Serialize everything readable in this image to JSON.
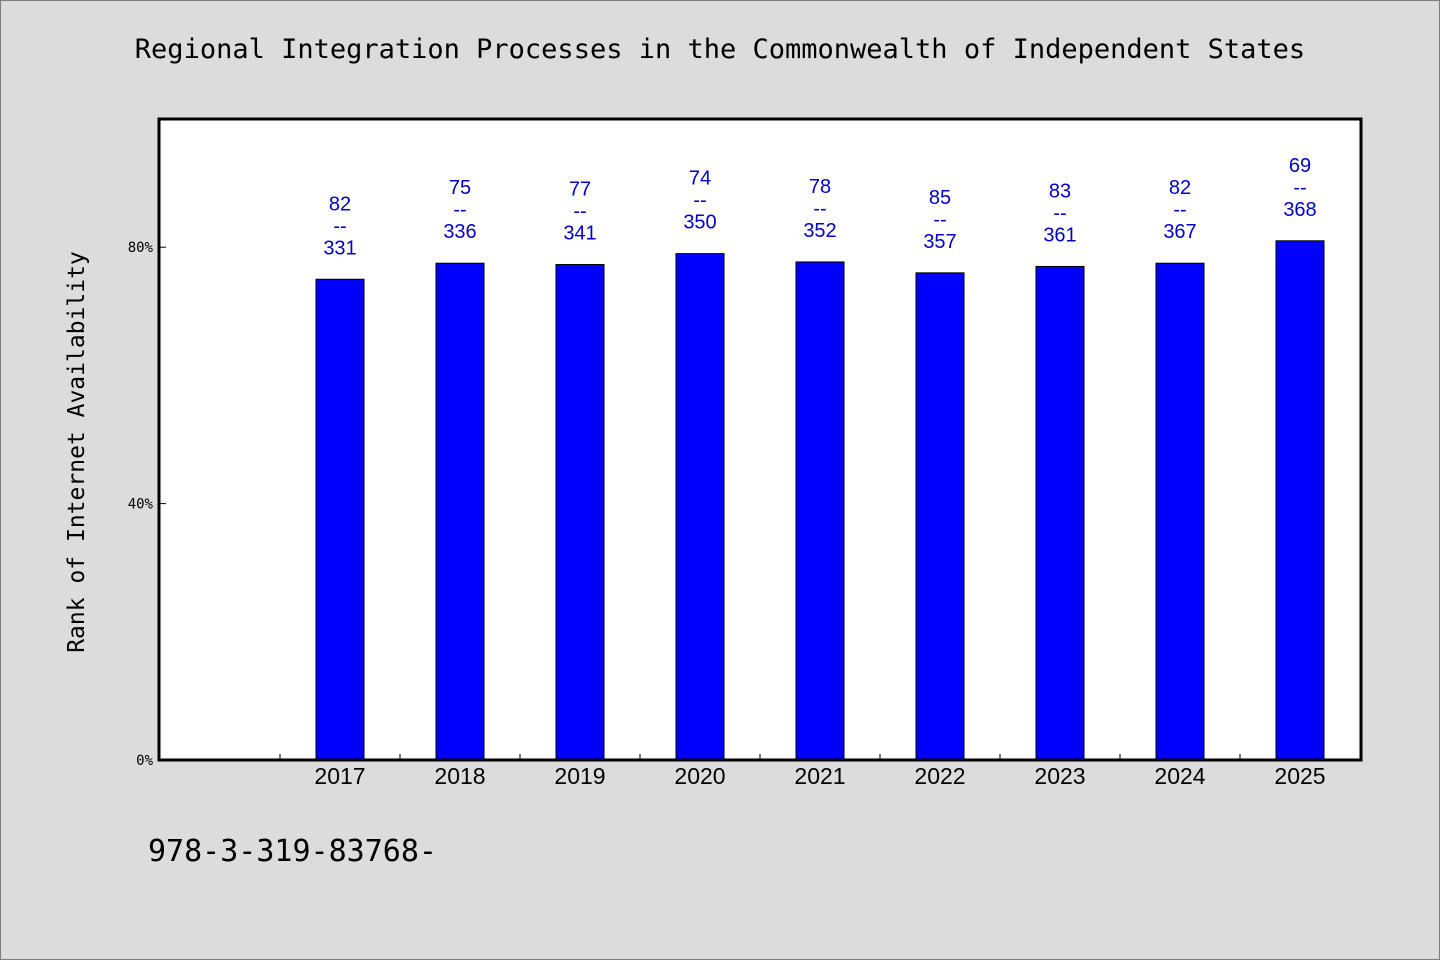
{
  "chart_data": {
    "type": "bar",
    "title": "Regional Integration Processes in the Commonwealth of Independent States",
    "xlabel": "",
    "ylabel": "Rank of Internet Availability",
    "categories": [
      "2017",
      "2018",
      "2019",
      "2020",
      "2021",
      "2022",
      "2023",
      "2024",
      "2025"
    ],
    "series": [
      {
        "values": [
          75,
          77.5,
          77.3,
          79,
          77.7,
          76,
          77,
          77.5,
          81
        ]
      }
    ],
    "data_labels": [
      {
        "top": "82",
        "separator": "--",
        "bottom": "331"
      },
      {
        "top": "75",
        "separator": "--",
        "bottom": "336"
      },
      {
        "top": "77",
        "separator": "--",
        "bottom": "341"
      },
      {
        "top": "74",
        "separator": "--",
        "bottom": "350"
      },
      {
        "top": "78",
        "separator": "--",
        "bottom": "352"
      },
      {
        "top": "85",
        "separator": "--",
        "bottom": "357"
      },
      {
        "top": "83",
        "separator": "--",
        "bottom": "361"
      },
      {
        "top": "82",
        "separator": "--",
        "bottom": "367"
      },
      {
        "top": "69",
        "separator": "--",
        "bottom": "368"
      }
    ],
    "yticks": [
      0,
      40,
      80
    ],
    "ytick_labels": [
      "0%",
      "40%",
      "80%"
    ],
    "ylim": [
      0,
      100
    ],
    "grid": false,
    "legend": "none",
    "colors": {
      "bar": "#0000ff",
      "label": "#0000cc",
      "plot_background": "#ffffff",
      "page_background": "#dcdcdc"
    }
  },
  "footnote": "978-3-319-83768-"
}
